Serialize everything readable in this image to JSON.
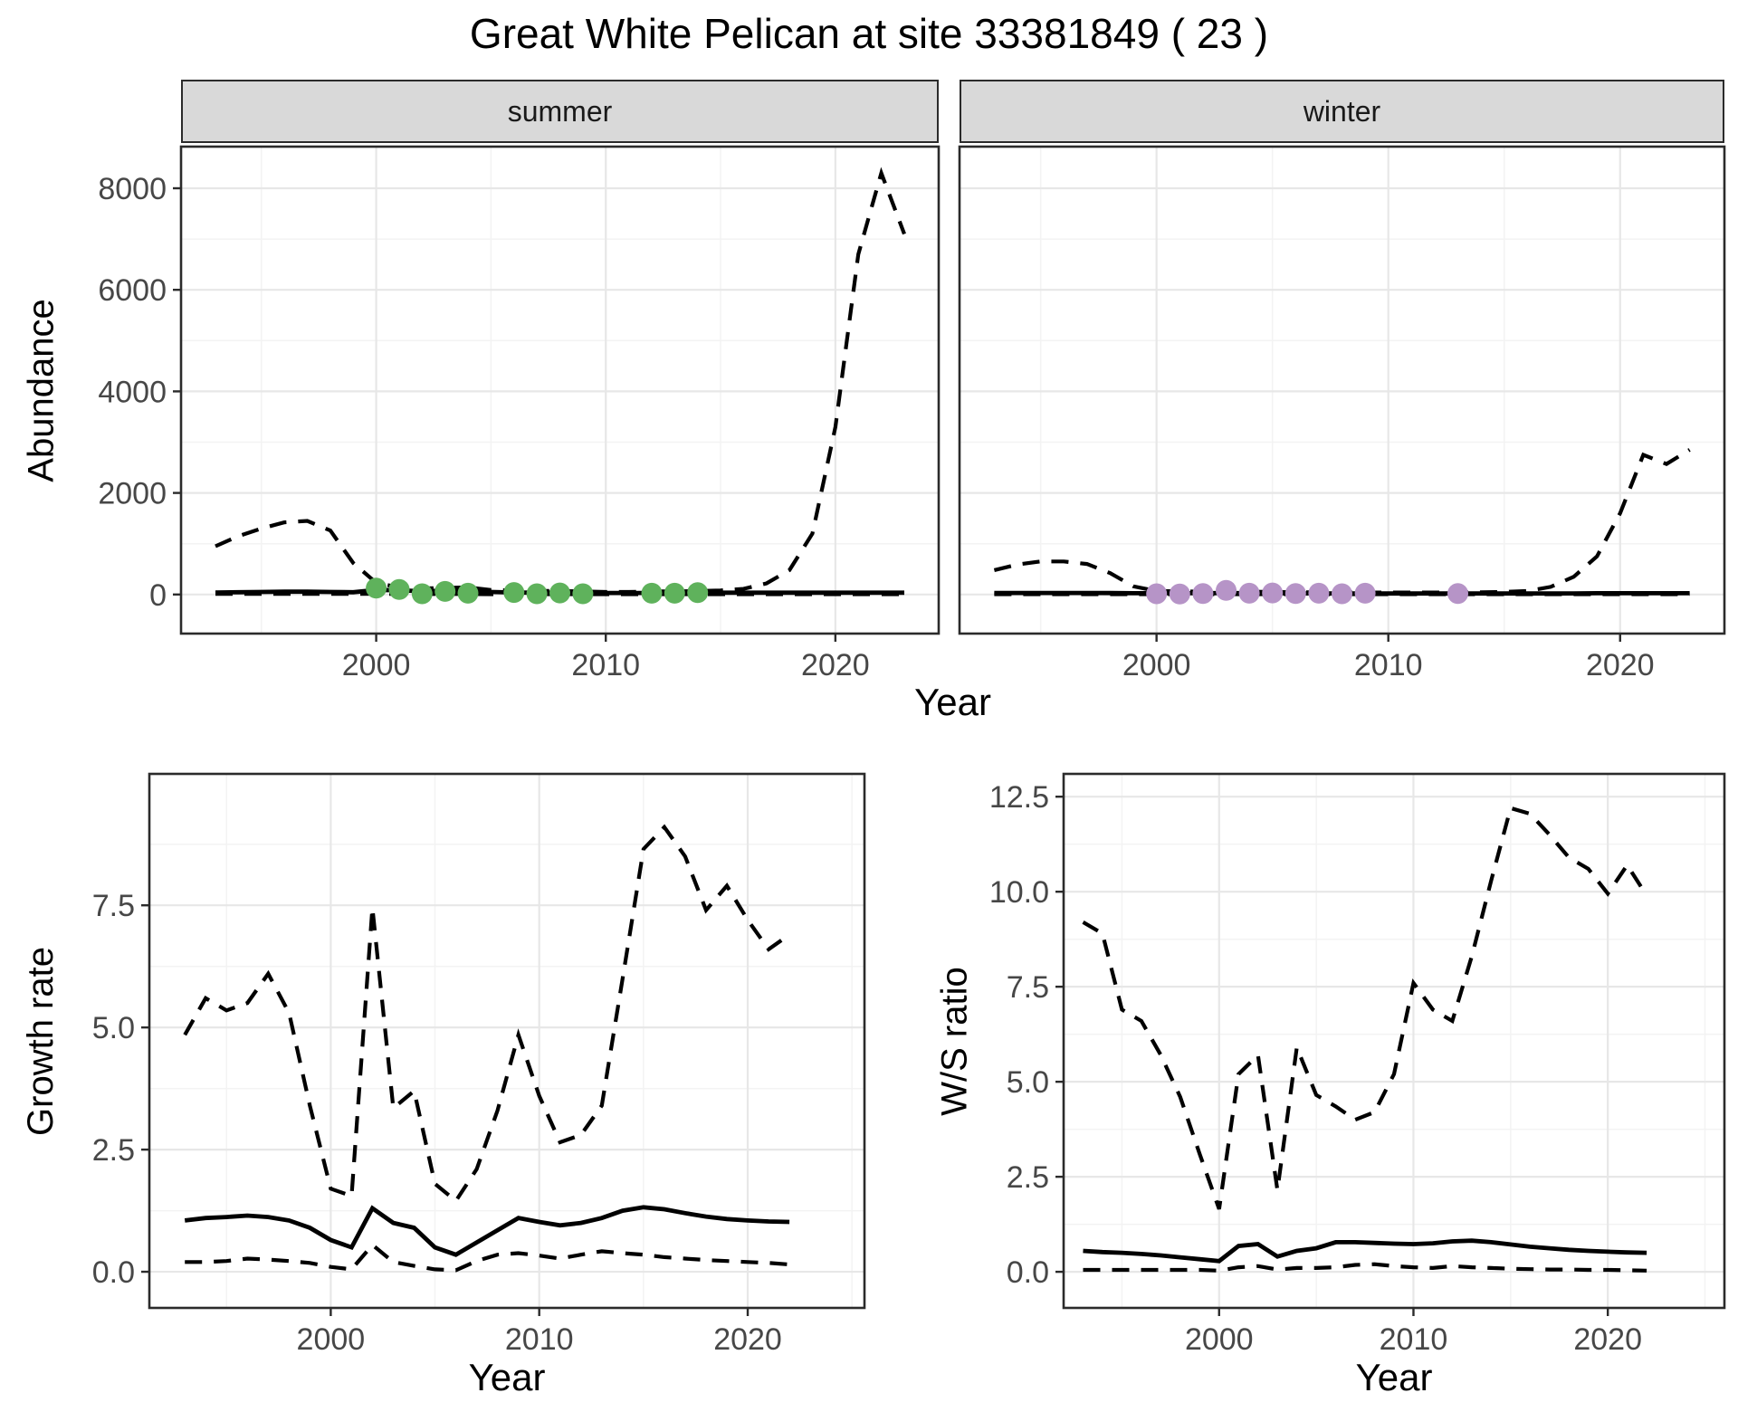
{
  "title": "Great White Pelican at site 33381849 ( 23 )",
  "axes": {
    "abundance": "Abundance",
    "year": "Year",
    "growth_rate": "Growth rate",
    "ws_ratio": "W/S ratio"
  },
  "style": {
    "line_color": "#000000",
    "summer_point_color": "#5FB25C",
    "winter_point_color": "#B694C7",
    "strip_bg": "#d9d9d9",
    "panel_border": "#2b2b2b",
    "grid_major": "#e7e7e7",
    "grid_minor": "#f3f3f3",
    "tick_text": "#474747"
  },
  "chart_data": [
    {
      "id": "abundance-summer",
      "type": "line",
      "facet": "summer",
      "xlabel": "Year",
      "ylabel": "Abundance",
      "xlim": [
        1991.5,
        2024.5
      ],
      "ylim": [
        -770,
        8820
      ],
      "xticks": [
        2000,
        2010,
        2020
      ],
      "xtick_labels": [
        "2000",
        "2010",
        "2020"
      ],
      "yticks": [
        0,
        2000,
        4000,
        6000,
        8000
      ],
      "ytick_labels": [
        "0",
        "2000",
        "4000",
        "6000",
        "8000"
      ],
      "xminor": [
        1995,
        2005,
        2015
      ],
      "yminor": [
        1000,
        3000,
        5000,
        7000
      ],
      "x": [
        1993,
        1994,
        1995,
        1996,
        1997,
        1998,
        1999,
        2000,
        2001,
        2002,
        2003,
        2004,
        2005,
        2006,
        2007,
        2008,
        2009,
        2010,
        2011,
        2012,
        2013,
        2014,
        2015,
        2016,
        2017,
        2018,
        2019,
        2020,
        2021,
        2022,
        2023
      ],
      "series": [
        {
          "name": "ci_upper",
          "style": "dashed",
          "values": [
            950,
            1150,
            1300,
            1420,
            1450,
            1260,
            620,
            230,
            140,
            120,
            130,
            140,
            90,
            80,
            70,
            70,
            60,
            50,
            50,
            60,
            60,
            70,
            80,
            110,
            220,
            480,
            1200,
            3300,
            6700,
            8300,
            7100
          ]
        },
        {
          "name": "estimate",
          "style": "solid",
          "values": [
            40,
            45,
            50,
            55,
            55,
            50,
            45,
            90,
            85,
            60,
            80,
            70,
            50,
            40,
            35,
            35,
            30,
            30,
            30,
            30,
            30,
            35,
            35,
            35,
            35,
            35,
            35,
            35,
            35,
            35,
            35
          ]
        },
        {
          "name": "ci_lower",
          "style": "dashed",
          "values": [
            10,
            10,
            10,
            10,
            10,
            10,
            10,
            15,
            10,
            5,
            10,
            8,
            5,
            5,
            5,
            5,
            5,
            5,
            5,
            5,
            5,
            5,
            5,
            5,
            5,
            5,
            5,
            5,
            5,
            5,
            5
          ]
        }
      ],
      "points": {
        "name": "observations-summer",
        "color": "#5FB25C",
        "x": [
          2000,
          2001,
          2002,
          2003,
          2004,
          2006,
          2007,
          2008,
          2009,
          2012,
          2013,
          2014
        ],
        "y": [
          125,
          100,
          15,
          60,
          25,
          40,
          15,
          30,
          15,
          25,
          25,
          35
        ]
      }
    },
    {
      "id": "abundance-winter",
      "type": "line",
      "facet": "winter",
      "xlabel": "Year",
      "ylabel": "Abundance",
      "xlim": [
        1991.5,
        2024.5
      ],
      "ylim": [
        -770,
        8820
      ],
      "xticks": [
        2000,
        2010,
        2020
      ],
      "xtick_labels": [
        "2000",
        "2010",
        "2020"
      ],
      "yticks": [
        0,
        2000,
        4000,
        6000,
        8000
      ],
      "ytick_labels": [],
      "xminor": [
        1995,
        2005,
        2015
      ],
      "yminor": [
        1000,
        3000,
        5000,
        7000
      ],
      "x": [
        1993,
        1994,
        1995,
        1996,
        1997,
        1998,
        1999,
        2000,
        2001,
        2002,
        2003,
        2004,
        2005,
        2006,
        2007,
        2008,
        2009,
        2010,
        2011,
        2012,
        2013,
        2014,
        2015,
        2016,
        2017,
        2018,
        2019,
        2020,
        2021,
        2022,
        2023
      ],
      "series": [
        {
          "name": "ci_upper",
          "style": "dashed",
          "values": [
            480,
            590,
            650,
            650,
            600,
            420,
            160,
            70,
            60,
            55,
            60,
            55,
            50,
            45,
            45,
            40,
            40,
            40,
            40,
            40,
            40,
            45,
            50,
            70,
            150,
            350,
            750,
            1600,
            2750,
            2570,
            2850
          ]
        },
        {
          "name": "estimate",
          "style": "solid",
          "values": [
            30,
            30,
            30,
            30,
            30,
            28,
            25,
            25,
            25,
            25,
            28,
            25,
            25,
            22,
            22,
            22,
            20,
            20,
            20,
            20,
            20,
            20,
            20,
            20,
            20,
            22,
            25,
            25,
            25,
            25,
            25
          ]
        },
        {
          "name": "ci_lower",
          "style": "dashed",
          "values": [
            5,
            5,
            5,
            5,
            5,
            5,
            5,
            5,
            5,
            5,
            5,
            5,
            5,
            5,
            5,
            5,
            5,
            5,
            5,
            5,
            5,
            5,
            5,
            5,
            5,
            5,
            5,
            5,
            5,
            5,
            5
          ]
        }
      ],
      "points": {
        "name": "observations-winter",
        "color": "#B694C7",
        "x": [
          2000,
          2001,
          2002,
          2003,
          2004,
          2005,
          2006,
          2007,
          2008,
          2009,
          2013
        ],
        "y": [
          15,
          10,
          20,
          80,
          25,
          30,
          20,
          25,
          15,
          25,
          20
        ]
      }
    },
    {
      "id": "growth-rate",
      "type": "line",
      "facet": "",
      "xlabel": "Year",
      "ylabel": "Growth rate",
      "xlim": [
        1991.3,
        2025.6
      ],
      "ylim": [
        -0.74,
        10.19
      ],
      "xticks": [
        2000,
        2010,
        2020
      ],
      "xtick_labels": [
        "2000",
        "2010",
        "2020"
      ],
      "yticks": [
        0,
        2.5,
        5,
        7.5
      ],
      "ytick_labels": [
        "0.0",
        "2.5",
        "5.0",
        "7.5"
      ],
      "xminor": [
        1995,
        2005,
        2015,
        2025
      ],
      "yminor": [
        1.25,
        3.75,
        6.25,
        8.75
      ],
      "x": [
        1993,
        1994,
        1995,
        1996,
        1997,
        1998,
        1999,
        2000,
        2001,
        2002,
        2003,
        2004,
        2005,
        2006,
        2007,
        2008,
        2009,
        2010,
        2011,
        2012,
        2013,
        2014,
        2015,
        2016,
        2017,
        2018,
        2019,
        2020,
        2021,
        2022
      ],
      "series": [
        {
          "name": "ci_upper",
          "style": "dashed",
          "values": [
            4.85,
            5.6,
            5.35,
            5.5,
            6.1,
            5.3,
            3.4,
            1.7,
            1.55,
            7.45,
            3.35,
            3.7,
            1.8,
            1.45,
            2.1,
            3.3,
            4.85,
            3.6,
            2.65,
            2.8,
            3.4,
            6.0,
            8.65,
            9.1,
            8.5,
            7.4,
            7.9,
            7.2,
            6.6,
            6.9
          ]
        },
        {
          "name": "estimate",
          "style": "solid",
          "values": [
            1.05,
            1.1,
            1.12,
            1.15,
            1.12,
            1.05,
            0.9,
            0.65,
            0.5,
            1.3,
            1.0,
            0.9,
            0.5,
            0.35,
            0.6,
            0.85,
            1.1,
            1.02,
            0.95,
            1.0,
            1.1,
            1.25,
            1.32,
            1.28,
            1.2,
            1.13,
            1.08,
            1.05,
            1.03,
            1.02
          ]
        },
        {
          "name": "ci_lower",
          "style": "dashed",
          "values": [
            0.2,
            0.2,
            0.22,
            0.27,
            0.25,
            0.22,
            0.18,
            0.1,
            0.05,
            0.55,
            0.2,
            0.12,
            0.05,
            0.03,
            0.22,
            0.35,
            0.38,
            0.33,
            0.27,
            0.35,
            0.42,
            0.38,
            0.35,
            0.3,
            0.27,
            0.24,
            0.22,
            0.2,
            0.18,
            0.15
          ]
        }
      ]
    },
    {
      "id": "ws-ratio",
      "type": "line",
      "facet": "",
      "xlabel": "Year",
      "ylabel": "W/S ratio",
      "xlim": [
        1992,
        2026
      ],
      "ylim": [
        -0.95,
        13.1
      ],
      "xticks": [
        2000,
        2010,
        2020
      ],
      "xtick_labels": [
        "2000",
        "2010",
        "2020"
      ],
      "yticks": [
        0,
        2.5,
        5,
        7.5,
        10,
        12.5
      ],
      "ytick_labels": [
        "0.0",
        "2.5",
        "5.0",
        "7.5",
        "10.0",
        "12.5"
      ],
      "xminor": [
        1995,
        2005,
        2015,
        2025
      ],
      "yminor": [
        1.25,
        3.75,
        6.25,
        8.75,
        11.25
      ],
      "x": [
        1993,
        1994,
        1995,
        1996,
        1997,
        1998,
        1999,
        2000,
        2001,
        2002,
        2003,
        2004,
        2005,
        2006,
        2007,
        2008,
        2009,
        2010,
        2011,
        2012,
        2013,
        2014,
        2015,
        2016,
        2017,
        2018,
        2019,
        2020,
        2021,
        2022
      ],
      "series": [
        {
          "name": "ci_upper",
          "style": "dashed",
          "values": [
            9.2,
            8.9,
            6.9,
            6.6,
            5.7,
            4.6,
            3.1,
            1.65,
            5.2,
            5.7,
            2.15,
            5.9,
            4.65,
            4.35,
            4.0,
            4.2,
            5.2,
            7.6,
            6.9,
            6.6,
            8.3,
            10.3,
            12.2,
            12.05,
            11.5,
            10.9,
            10.6,
            9.95,
            10.7,
            9.9
          ]
        },
        {
          "name": "estimate",
          "style": "solid",
          "values": [
            0.55,
            0.52,
            0.5,
            0.47,
            0.43,
            0.38,
            0.33,
            0.28,
            0.68,
            0.73,
            0.4,
            0.55,
            0.62,
            0.78,
            0.78,
            0.76,
            0.74,
            0.73,
            0.75,
            0.8,
            0.82,
            0.78,
            0.72,
            0.66,
            0.62,
            0.58,
            0.55,
            0.53,
            0.51,
            0.5
          ]
        },
        {
          "name": "ci_lower",
          "style": "dashed",
          "values": [
            0.05,
            0.05,
            0.05,
            0.05,
            0.05,
            0.05,
            0.05,
            0.03,
            0.12,
            0.15,
            0.06,
            0.1,
            0.1,
            0.12,
            0.18,
            0.2,
            0.15,
            0.12,
            0.1,
            0.15,
            0.12,
            0.1,
            0.08,
            0.07,
            0.06,
            0.06,
            0.05,
            0.05,
            0.04,
            0.03
          ]
        }
      ]
    }
  ]
}
